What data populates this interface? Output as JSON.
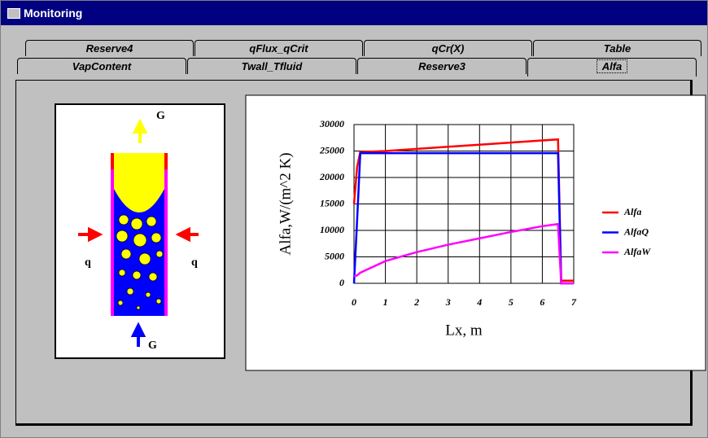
{
  "window": {
    "title": "Monitoring"
  },
  "tabs": {
    "back": [
      "Reserve4",
      "qFlux_qCrit",
      "qCr(X)",
      "Table"
    ],
    "front": [
      "VapContent",
      "Twall_Tfluid",
      "Reserve3",
      "Alfa"
    ],
    "selected": "Alfa"
  },
  "diagram": {
    "labels": [
      "G",
      "q",
      "q",
      "G"
    ]
  },
  "chart_data": {
    "type": "line",
    "ylabel": "Alfa,W/(m^2 K)",
    "xlabel": "Lx, m",
    "x": [
      0,
      0.1,
      0.2,
      1,
      2,
      3,
      4,
      5,
      6,
      6.5,
      6.6,
      7
    ],
    "series": [
      {
        "name": "Alfa",
        "color": "#ff0000",
        "values": [
          15000,
          22000,
          24800,
          25000,
          25400,
          25800,
          26200,
          26600,
          27000,
          27200,
          500,
          500
        ]
      },
      {
        "name": "AlfaQ",
        "color": "#0000ff",
        "values": [
          0,
          12000,
          24600,
          24600,
          24600,
          24600,
          24600,
          24600,
          24600,
          24600,
          0,
          0
        ]
      },
      {
        "name": "AlfaW",
        "color": "#ff00ff",
        "values": [
          1300,
          1500,
          2000,
          4200,
          5900,
          7300,
          8500,
          9700,
          10800,
          11200,
          0,
          0
        ]
      }
    ],
    "xlim": [
      0,
      7
    ],
    "xticks": [
      0,
      1,
      2,
      3,
      4,
      5,
      6,
      7
    ],
    "ylim": [
      0,
      30000
    ],
    "yticks": [
      0,
      5000,
      10000,
      15000,
      20000,
      25000,
      30000
    ],
    "grid": true,
    "legend": "right"
  }
}
